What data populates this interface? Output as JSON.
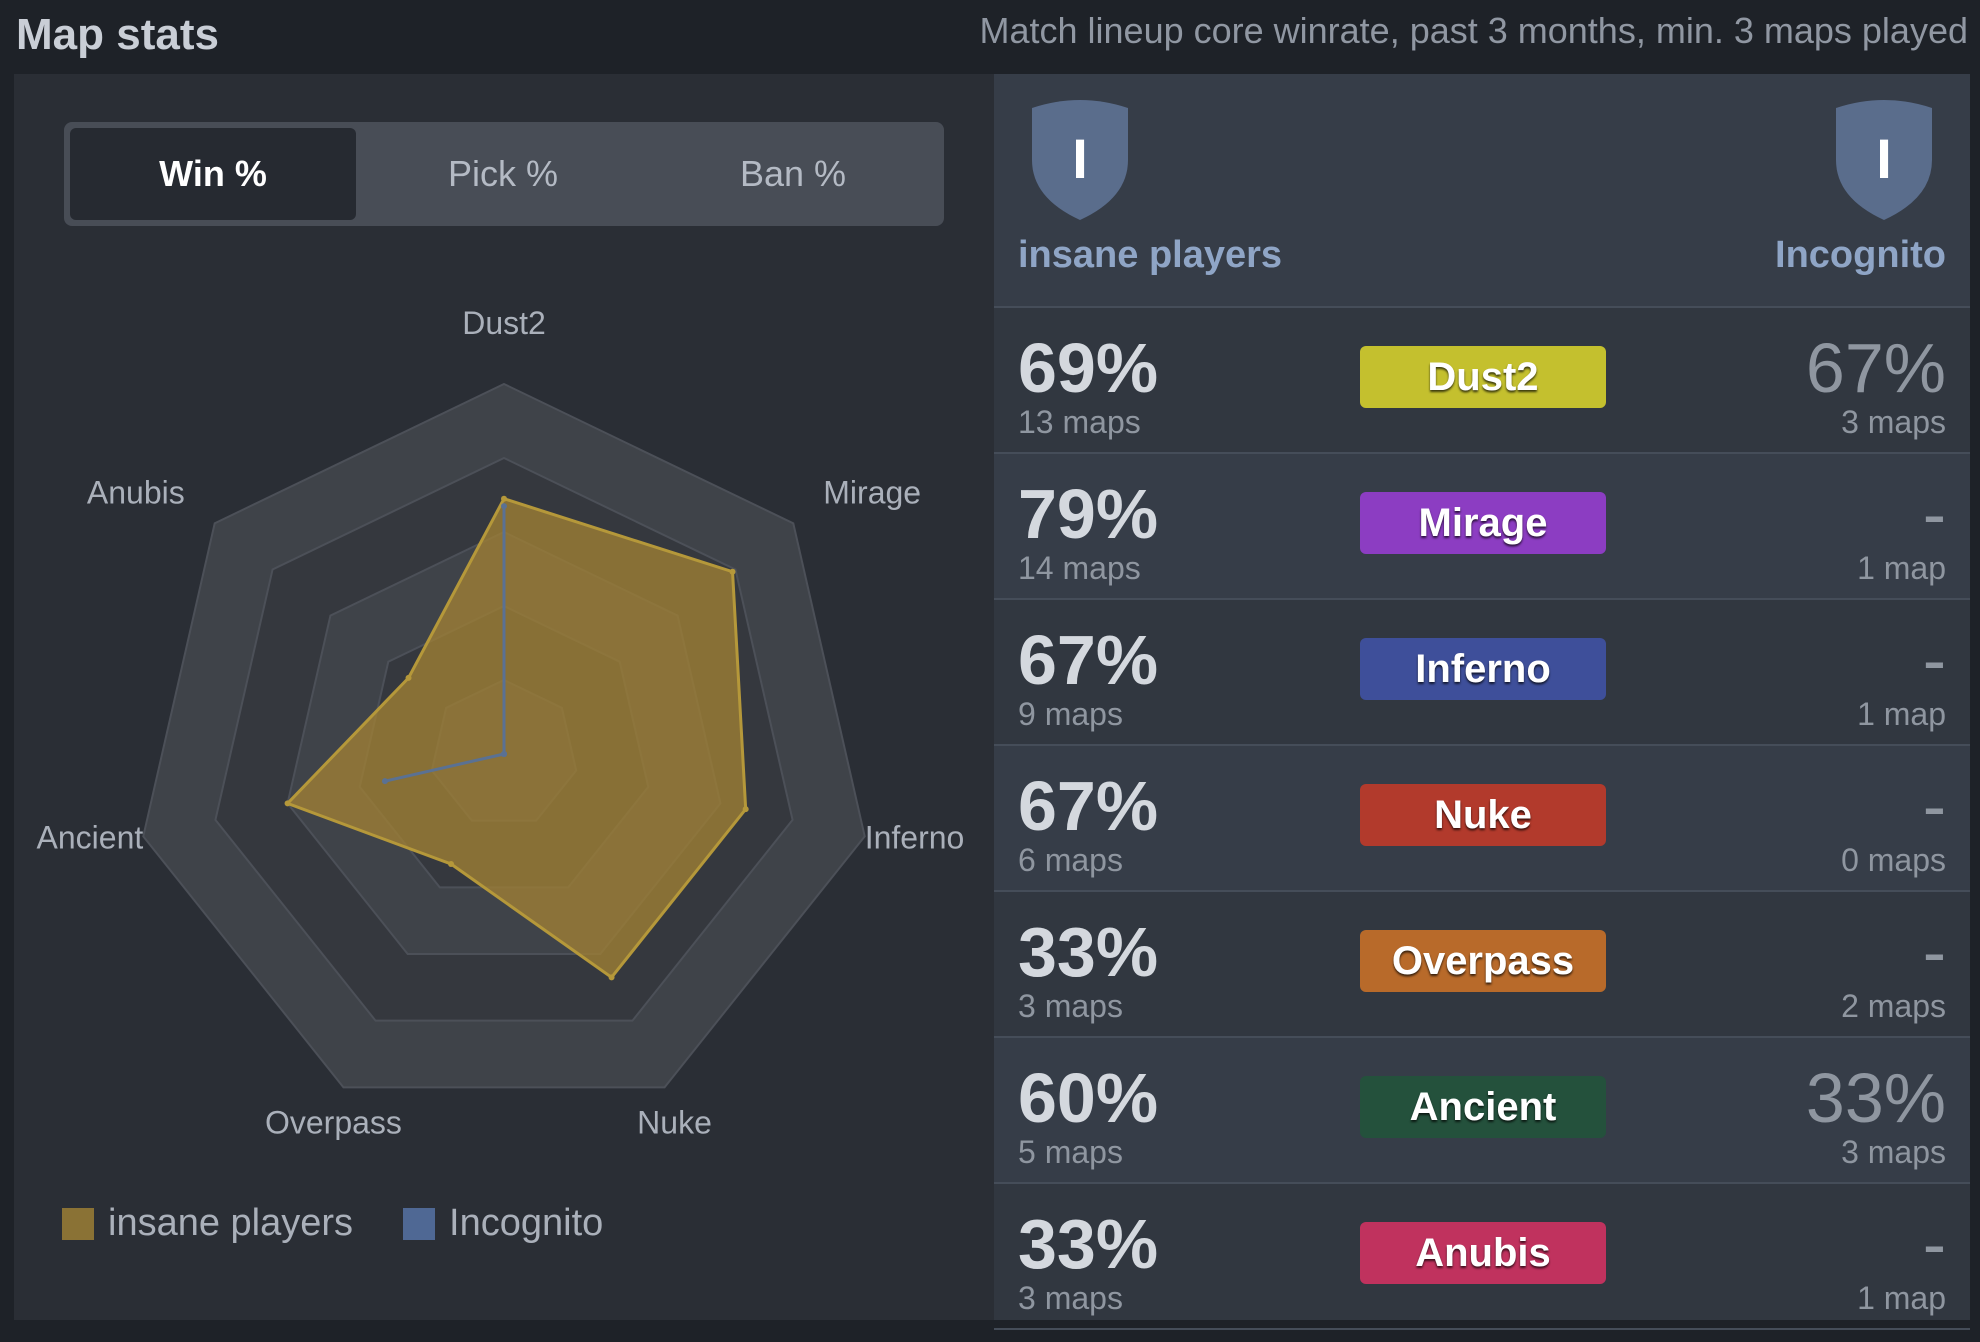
{
  "header": {
    "title": "Map stats",
    "subtitle": "Match lineup core winrate, past 3 months, min. 3 maps played"
  },
  "tabs": [
    {
      "label": "Win %",
      "active": true
    },
    {
      "label": "Pick %",
      "active": false
    },
    {
      "label": "Ban %",
      "active": false
    }
  ],
  "teams": {
    "left": {
      "name": "insane players",
      "logo_letter": "I",
      "color": "#b5983a"
    },
    "right": {
      "name": "Incognito",
      "logo_letter": "I",
      "color": "#5a7193"
    }
  },
  "legend": [
    {
      "label": "insane players",
      "color": "#8a7235"
    },
    {
      "label": "Incognito",
      "color": "#4f6894"
    }
  ],
  "chart_data": {
    "type": "radar",
    "axes": [
      "Dust2",
      "Mirage",
      "Inferno",
      "Nuke",
      "Overpass",
      "Ancient",
      "Anubis"
    ],
    "rmax": 100,
    "series": [
      {
        "name": "insane players",
        "values": [
          69,
          79,
          67,
          67,
          33,
          60,
          33
        ],
        "color": "#b5983a"
      },
      {
        "name": "Incognito",
        "values": [
          67,
          0,
          0,
          0,
          0,
          33,
          0
        ],
        "color": "#5a7193"
      }
    ]
  },
  "maps": [
    {
      "name": "Dust2",
      "left_pct": "69%",
      "left_maps": "13 maps",
      "right_pct": "67%",
      "right_maps": "3 maps",
      "pill_color": "#c4c02e"
    },
    {
      "name": "Mirage",
      "left_pct": "79%",
      "left_maps": "14 maps",
      "right_pct": "-",
      "right_maps": "1 map",
      "pill_color": "#8c3dc2"
    },
    {
      "name": "Inferno",
      "left_pct": "67%",
      "left_maps": "9 maps",
      "right_pct": "-",
      "right_maps": "1 map",
      "pill_color": "#3e4f9a"
    },
    {
      "name": "Nuke",
      "left_pct": "67%",
      "left_maps": "6 maps",
      "right_pct": "-",
      "right_maps": "0 maps",
      "pill_color": "#b23a2c"
    },
    {
      "name": "Overpass",
      "left_pct": "33%",
      "left_maps": "3 maps",
      "right_pct": "-",
      "right_maps": "2 maps",
      "pill_color": "#b86a2a"
    },
    {
      "name": "Ancient",
      "left_pct": "60%",
      "left_maps": "5 maps",
      "right_pct": "33%",
      "right_maps": "3 maps",
      "pill_color": "#24513c"
    },
    {
      "name": "Anubis",
      "left_pct": "33%",
      "left_maps": "3 maps",
      "right_pct": "-",
      "right_maps": "1 map",
      "pill_color": "#c0325e"
    }
  ]
}
